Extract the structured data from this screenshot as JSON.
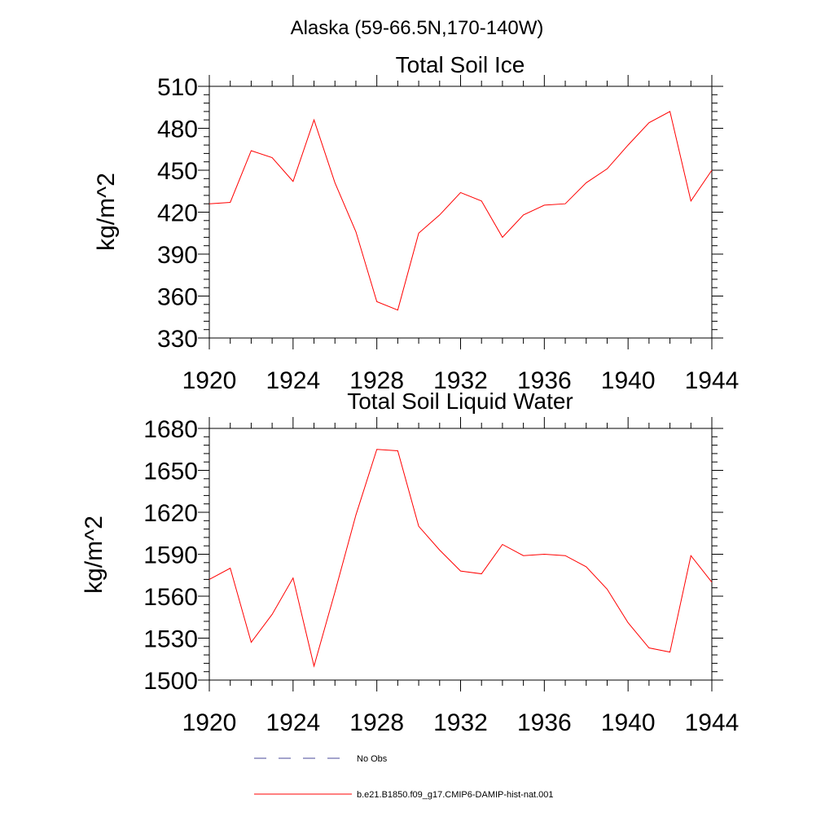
{
  "figure": {
    "title": "Alaska (59-66.5N,170-140W)"
  },
  "chart_data": [
    {
      "type": "line",
      "title": "Total Soil Ice",
      "ylabel": "kg/m^2",
      "xlabel": "",
      "xlim": [
        1920,
        1944
      ],
      "ylim": [
        330,
        510
      ],
      "xticks": [
        "1920",
        "1924",
        "1928",
        "1932",
        "1936",
        "1940",
        "1944"
      ],
      "yticks": [
        "330",
        "360",
        "390",
        "420",
        "450",
        "480",
        "510"
      ],
      "grid": false,
      "x": [
        1920,
        1921,
        1922,
        1923,
        1924,
        1925,
        1926,
        1927,
        1928,
        1929,
        1930,
        1931,
        1932,
        1933,
        1934,
        1935,
        1936,
        1937,
        1938,
        1939,
        1940,
        1941,
        1942,
        1943,
        1944
      ],
      "series": [
        {
          "color": "#ff0000",
          "values": [
            426,
            427,
            464,
            459,
            442,
            486,
            441,
            406,
            356,
            350,
            405,
            418,
            434,
            428,
            402,
            418,
            425,
            426,
            441,
            451,
            468,
            484,
            492,
            428,
            450
          ]
        }
      ]
    },
    {
      "type": "line",
      "title": "Total Soil Liquid Water",
      "ylabel": "kg/m^2",
      "xlabel": "",
      "xlim": [
        1920,
        1944
      ],
      "ylim": [
        1500,
        1680
      ],
      "xticks": [
        "1920",
        "1924",
        "1928",
        "1932",
        "1936",
        "1940",
        "1944"
      ],
      "yticks": [
        "1500",
        "1530",
        "1560",
        "1590",
        "1620",
        "1650",
        "1680"
      ],
      "grid": false,
      "x": [
        1920,
        1921,
        1922,
        1923,
        1924,
        1925,
        1926,
        1927,
        1928,
        1929,
        1930,
        1931,
        1932,
        1933,
        1934,
        1935,
        1936,
        1937,
        1938,
        1939,
        1940,
        1941,
        1942,
        1943,
        1944
      ],
      "series": [
        {
          "color": "#ff0000",
          "values": [
            1572,
            1580,
            1527,
            1547,
            1573,
            1510,
            1563,
            1618,
            1665,
            1664,
            1610,
            1593,
            1578,
            1576,
            1597,
            1589,
            1590,
            1589,
            1581,
            1565,
            1541,
            1523,
            1520,
            1589,
            1570
          ]
        }
      ]
    }
  ],
  "legend": [
    {
      "label": "No Obs",
      "style": "dashed",
      "color": "#4a4a9a"
    },
    {
      "label": "b.e21.B1850.f09_g17.CMIP6-DAMIP-hist-nat.001",
      "style": "solid",
      "color": "#ff0000"
    }
  ]
}
